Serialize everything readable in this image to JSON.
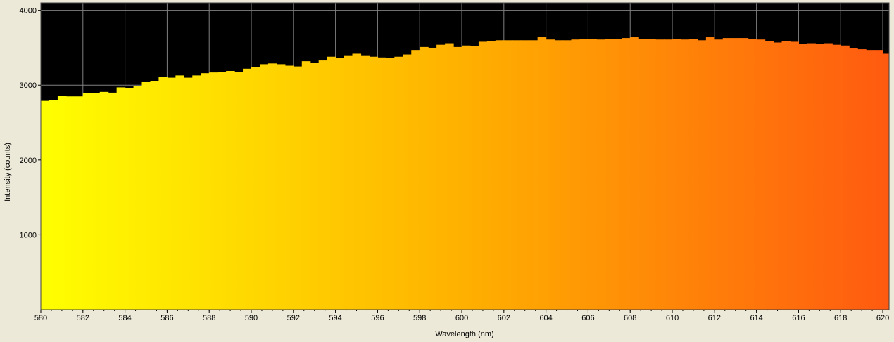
{
  "chart_data": {
    "type": "bar",
    "title": "",
    "xlabel": "Wavelength (nm)",
    "ylabel": "Intensity (counts)",
    "xlim": [
      580,
      620.3
    ],
    "ylim": [
      0,
      4100
    ],
    "grid": true,
    "x_ticks": [
      "580",
      "582",
      "584",
      "586",
      "588",
      "590",
      "592",
      "594",
      "596",
      "598",
      "600",
      "602",
      "604",
      "606",
      "608",
      "610",
      "612",
      "614",
      "616",
      "618",
      "620"
    ],
    "y_ticks": [
      "1000",
      "2000",
      "3000",
      "4000"
    ],
    "colors": {
      "plot_background": "#000000",
      "page_background": "#ece9d8",
      "grid": "#808080",
      "fill_start": "#ffff00",
      "fill_mid": "#ffb000",
      "fill_end": "#ff5a10"
    },
    "x": [
      580.0,
      580.4,
      580.8,
      581.2,
      581.6,
      582.0,
      582.4,
      582.8,
      583.2,
      583.6,
      584.0,
      584.4,
      584.8,
      585.2,
      585.6,
      586.0,
      586.4,
      586.8,
      587.2,
      587.6,
      588.0,
      588.4,
      588.8,
      589.2,
      589.6,
      590.0,
      590.4,
      590.8,
      591.2,
      591.6,
      592.0,
      592.4,
      592.8,
      593.2,
      593.6,
      594.0,
      594.4,
      594.8,
      595.2,
      595.6,
      596.0,
      596.4,
      596.8,
      597.2,
      597.6,
      598.0,
      598.4,
      598.8,
      599.2,
      599.6,
      600.0,
      600.4,
      600.8,
      601.2,
      601.6,
      602.0,
      602.4,
      602.8,
      603.2,
      603.6,
      604.0,
      604.4,
      604.8,
      605.2,
      605.6,
      606.0,
      606.4,
      606.8,
      607.2,
      607.6,
      608.0,
      608.4,
      608.8,
      609.2,
      609.6,
      610.0,
      610.4,
      610.8,
      611.2,
      611.6,
      612.0,
      612.4,
      612.8,
      613.2,
      613.6,
      614.0,
      614.4,
      614.8,
      615.2,
      615.6,
      616.0,
      616.4,
      616.8,
      617.2,
      617.6,
      618.0,
      618.4,
      618.8,
      619.2,
      619.6,
      620.0
    ],
    "values": [
      2790,
      2800,
      2860,
      2850,
      2850,
      2890,
      2890,
      2910,
      2900,
      2970,
      2960,
      2990,
      3040,
      3050,
      3110,
      3100,
      3130,
      3100,
      3130,
      3160,
      3170,
      3180,
      3190,
      3180,
      3220,
      3240,
      3280,
      3290,
      3280,
      3260,
      3250,
      3320,
      3300,
      3330,
      3380,
      3360,
      3390,
      3420,
      3390,
      3380,
      3370,
      3360,
      3380,
      3410,
      3470,
      3510,
      3500,
      3540,
      3560,
      3510,
      3530,
      3520,
      3580,
      3590,
      3600,
      3600,
      3600,
      3600,
      3600,
      3640,
      3610,
      3600,
      3600,
      3610,
      3620,
      3620,
      3610,
      3620,
      3620,
      3630,
      3640,
      3620,
      3620,
      3610,
      3610,
      3620,
      3610,
      3620,
      3600,
      3640,
      3610,
      3630,
      3630,
      3630,
      3620,
      3610,
      3590,
      3570,
      3590,
      3580,
      3550,
      3560,
      3550,
      3560,
      3540,
      3530,
      3490,
      3480,
      3470,
      3470,
      3420
    ]
  }
}
